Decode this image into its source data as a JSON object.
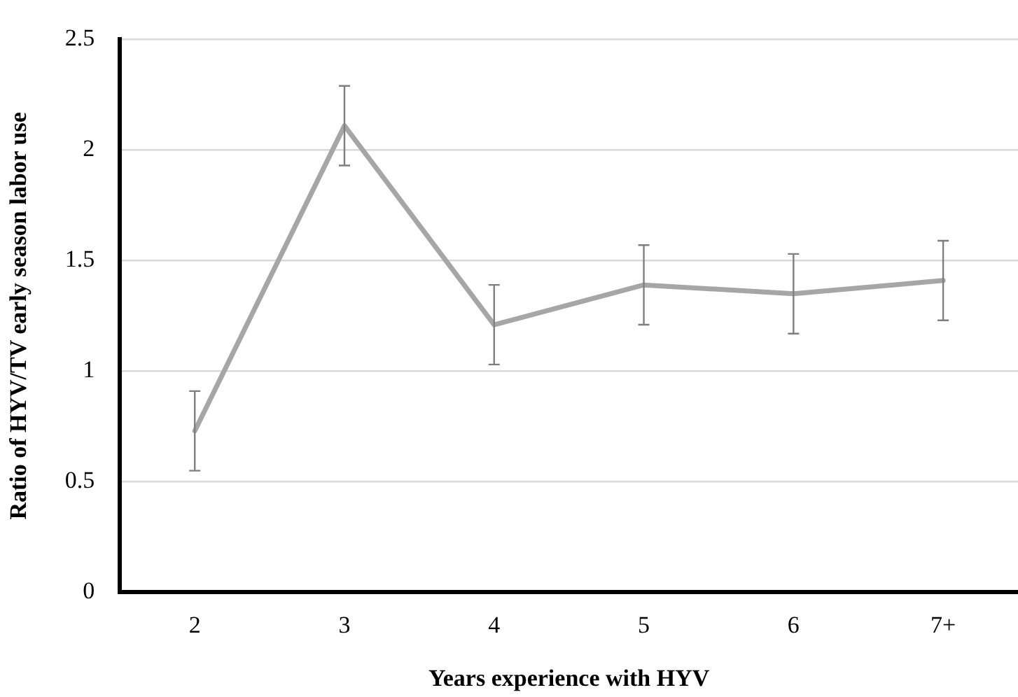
{
  "chart_data": {
    "type": "line",
    "xlabel": "Years experience with HYV",
    "ylabel": "Ratio of HYV/TV early season labor use",
    "categories": [
      "2",
      "3",
      "4",
      "5",
      "6",
      "7+"
    ],
    "values": [
      0.73,
      2.11,
      1.21,
      1.39,
      1.35,
      1.41
    ],
    "errors": [
      0.18,
      0.18,
      0.18,
      0.18,
      0.18,
      0.18
    ],
    "color": "#a6a6a6",
    "ylim": [
      0,
      2.5
    ],
    "yticks": [
      0,
      0.5,
      1,
      1.5,
      2,
      2.5
    ],
    "grid": "y",
    "legend": false,
    "marker": "none",
    "line_style": "solid"
  }
}
